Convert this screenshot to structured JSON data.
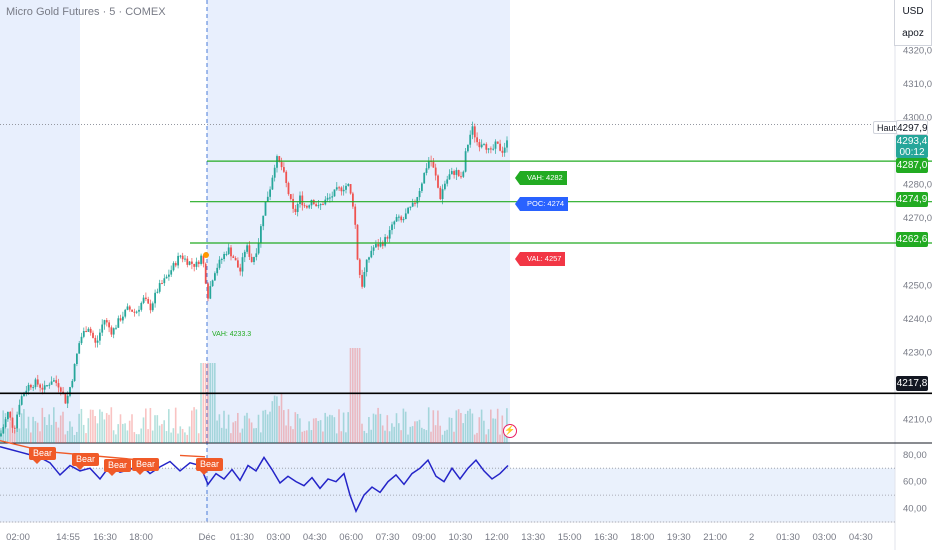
{
  "header": {
    "symbol_title": "Micro Gold Futures · 5 · COMEX",
    "currency": "USD",
    "unit": "apoz"
  },
  "price_axis": {
    "ticks": [
      "4320,0",
      "4310,0",
      "4300,0",
      "4280,0",
      "4270,0",
      "4250,0",
      "4240,0",
      "4230,0",
      "4210,0"
    ],
    "tick_values": [
      4320,
      4310,
      4300,
      4280,
      4270,
      4250,
      4240,
      4230,
      4210
    ]
  },
  "rsi_axis": {
    "ticks": [
      "80,00",
      "60,00",
      "40,00"
    ],
    "tick_values": [
      80,
      60,
      40
    ]
  },
  "time_axis": {
    "ticks": [
      "02:00",
      "14:55",
      "16:30",
      "18:00",
      "Déc",
      "01:30",
      "03:00",
      "04:30",
      "06:00",
      "07:30",
      "09:00",
      "10:30",
      "12:00",
      "13:30",
      "15:00",
      "16:30",
      "18:00",
      "19:30",
      "21:00",
      "2",
      "01:30",
      "03:00",
      "04:30"
    ]
  },
  "price_labels": {
    "haut": "Haut",
    "high_value": "4297,9",
    "current_value": "4293,4",
    "countdown": "00:12",
    "vah_line": "4287,0",
    "poc_line": "4274,9",
    "val_line": "4262,6",
    "black_line": "4217,8"
  },
  "profile_tags": {
    "vah": "VAH: 4282",
    "poc": "POC: 4274",
    "val": "VAL: 4257",
    "vah_left": "VAH: 4233.3"
  },
  "signals": {
    "bear_labels": [
      "Bear",
      "Bear",
      "Bear",
      "Bear",
      "Bear"
    ]
  },
  "colors": {
    "up": "#26a69a",
    "down": "#ef5350",
    "profile_green": "#22ab22",
    "poc_blue": "#2962ff",
    "val_red": "#f23645",
    "rsi_line": "#2424c8",
    "session_bg": "#e8effd",
    "bear": "#f05a28"
  },
  "chart_data": {
    "type": "candlestick",
    "title": "Micro Gold Futures · 5 · COMEX",
    "ylim": [
      4203,
      4335
    ],
    "horizontal_lines": [
      {
        "name": "VAH",
        "value": 4287.0
      },
      {
        "name": "POC",
        "value": 4274.9
      },
      {
        "name": "VAL",
        "value": 4262.6
      },
      {
        "name": "level",
        "value": 4217.8
      }
    ],
    "high": 4297.9,
    "last": 4293.4,
    "close_path": [
      [
        0,
        4205
      ],
      [
        8,
        4212
      ],
      [
        14,
        4207
      ],
      [
        20,
        4216
      ],
      [
        28,
        4220
      ],
      [
        36,
        4221
      ],
      [
        44,
        4219
      ],
      [
        52,
        4222
      ],
      [
        60,
        4220
      ],
      [
        66,
        4215
      ],
      [
        72,
        4222
      ],
      [
        80,
        4234
      ],
      [
        88,
        4238
      ],
      [
        96,
        4232
      ],
      [
        104,
        4240
      ],
      [
        112,
        4236
      ],
      [
        120,
        4240
      ],
      [
        128,
        4243
      ],
      [
        136,
        4242
      ],
      [
        144,
        4246
      ],
      [
        150,
        4243
      ],
      [
        158,
        4249
      ],
      [
        166,
        4252
      ],
      [
        172,
        4255
      ],
      [
        180,
        4259
      ],
      [
        188,
        4257
      ],
      [
        196,
        4256
      ],
      [
        202,
        4259
      ],
      [
        208,
        4247
      ],
      [
        214,
        4254
      ],
      [
        220,
        4257
      ],
      [
        228,
        4261
      ],
      [
        234,
        4258
      ],
      [
        240,
        4254
      ],
      [
        246,
        4262
      ],
      [
        252,
        4257
      ],
      [
        258,
        4262
      ],
      [
        264,
        4273
      ],
      [
        270,
        4279
      ],
      [
        276,
        4288
      ],
      [
        282,
        4285
      ],
      [
        288,
        4278
      ],
      [
        294,
        4271
      ],
      [
        300,
        4276
      ],
      [
        306,
        4273
      ],
      [
        312,
        4276
      ],
      [
        318,
        4273
      ],
      [
        324,
        4275
      ],
      [
        330,
        4276
      ],
      [
        336,
        4278
      ],
      [
        342,
        4279
      ],
      [
        348,
        4280
      ],
      [
        354,
        4273
      ],
      [
        358,
        4256
      ],
      [
        362,
        4250
      ],
      [
        366,
        4256
      ],
      [
        372,
        4261
      ],
      [
        378,
        4262
      ],
      [
        384,
        4263
      ],
      [
        390,
        4266
      ],
      [
        396,
        4270
      ],
      [
        402,
        4269
      ],
      [
        408,
        4272
      ],
      [
        414,
        4274
      ],
      [
        420,
        4279
      ],
      [
        426,
        4285
      ],
      [
        430,
        4288
      ],
      [
        436,
        4282
      ],
      [
        440,
        4276
      ],
      [
        444,
        4280
      ],
      [
        450,
        4283
      ],
      [
        456,
        4284
      ],
      [
        462,
        4281
      ],
      [
        466,
        4290
      ],
      [
        472,
        4297
      ],
      [
        478,
        4292
      ],
      [
        484,
        4293
      ],
      [
        490,
        4289
      ],
      [
        496,
        4292
      ],
      [
        502,
        4290
      ],
      [
        508,
        4293
      ]
    ],
    "rsi": {
      "ylim": [
        30,
        88
      ],
      "values": [
        [
          0,
          86
        ],
        [
          10,
          84
        ],
        [
          20,
          82
        ],
        [
          30,
          80
        ],
        [
          40,
          78
        ],
        [
          50,
          74
        ],
        [
          60,
          65
        ],
        [
          70,
          72
        ],
        [
          80,
          68
        ],
        [
          90,
          70
        ],
        [
          100,
          62
        ],
        [
          110,
          72
        ],
        [
          120,
          67
        ],
        [
          130,
          69
        ],
        [
          140,
          73
        ],
        [
          150,
          66
        ],
        [
          160,
          71
        ],
        [
          170,
          75
        ],
        [
          180,
          68
        ],
        [
          190,
          74
        ],
        [
          200,
          72
        ],
        [
          208,
          58
        ],
        [
          216,
          66
        ],
        [
          224,
          62
        ],
        [
          232,
          69
        ],
        [
          240,
          61
        ],
        [
          248,
          72
        ],
        [
          256,
          68
        ],
        [
          264,
          78
        ],
        [
          272,
          69
        ],
        [
          280,
          59
        ],
        [
          288,
          64
        ],
        [
          296,
          60
        ],
        [
          304,
          57
        ],
        [
          312,
          63
        ],
        [
          320,
          55
        ],
        [
          328,
          62
        ],
        [
          336,
          60
        ],
        [
          344,
          66
        ],
        [
          350,
          50
        ],
        [
          356,
          38
        ],
        [
          364,
          50
        ],
        [
          372,
          56
        ],
        [
          380,
          52
        ],
        [
          388,
          60
        ],
        [
          396,
          65
        ],
        [
          404,
          58
        ],
        [
          412,
          66
        ],
        [
          420,
          70
        ],
        [
          428,
          76
        ],
        [
          436,
          64
        ],
        [
          444,
          60
        ],
        [
          452,
          70
        ],
        [
          460,
          62
        ],
        [
          468,
          70
        ],
        [
          476,
          76
        ],
        [
          484,
          68
        ],
        [
          492,
          62
        ],
        [
          500,
          66
        ],
        [
          508,
          72
        ]
      ]
    }
  }
}
